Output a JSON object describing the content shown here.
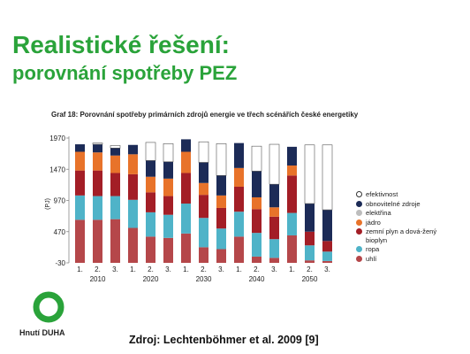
{
  "slide": {
    "title": "Realistické řešení:",
    "subtitle": "porovnání spotřeby PEZ",
    "source": "Zdroj: Lechtenböhmer et al. 2009 [9]",
    "logo_text": "Hnutí DUHA",
    "logo_icon": "green-ring-icon",
    "brand_color": "#2aa33a"
  },
  "chart_data": {
    "type": "bar",
    "stacked": true,
    "title": "Graf 18: Porovnání spotřeby primárních zdrojů energie ve třech scénářích české energetiky",
    "ylabel": "(PJ)",
    "ylim": [
      -30,
      1970
    ],
    "yticks": [
      -30,
      470,
      970,
      1470,
      1970
    ],
    "groups": [
      {
        "year": "2010",
        "scenarios": [
          "1.",
          "2.",
          "3."
        ]
      },
      {
        "year": "2020",
        "scenarios": [
          "1.",
          "2.",
          "3."
        ]
      },
      {
        "year": "2030",
        "scenarios": [
          "1.",
          "2.",
          "3."
        ]
      },
      {
        "year": "2040",
        "scenarios": [
          "1.",
          "2.",
          "3."
        ]
      },
      {
        "year": "2050",
        "scenarios": [
          "1.",
          "2.",
          "3."
        ]
      }
    ],
    "categories": [
      "2010 1.",
      "2010 2.",
      "2010 3.",
      "2020 1.",
      "2020 2.",
      "2020 3.",
      "2030 1.",
      "2030 2.",
      "2030 3.",
      "2040 1.",
      "2040 2.",
      "2040 3.",
      "2050 1.",
      "2050 2.",
      "2050 3."
    ],
    "series": [
      {
        "name": "uhlí",
        "color": "#b5474a",
        "values": [
          690,
          690,
          700,
          560,
          420,
          400,
          470,
          250,
          220,
          420,
          100,
          80,
          440,
          40,
          30
        ]
      },
      {
        "name": "ropa",
        "color": "#4fb3c8",
        "values": [
          390,
          380,
          370,
          450,
          390,
          370,
          480,
          470,
          330,
          400,
          380,
          300,
          360,
          240,
          150
        ]
      },
      {
        "name": "zemní plyn a dováž. bioplyn",
        "color": "#a31e26",
        "values": [
          400,
          410,
          370,
          410,
          320,
          300,
          490,
          370,
          330,
          400,
          380,
          360,
          600,
          220,
          170
        ]
      },
      {
        "name": "elektřina",
        "color": "#bdbdbd",
        "values": [
          0,
          0,
          0,
          0,
          0,
          0,
          0,
          0,
          0,
          0,
          0,
          0,
          0,
          0,
          0
        ]
      },
      {
        "name": "jádro",
        "color": "#e8732a",
        "values": [
          300,
          290,
          280,
          320,
          250,
          280,
          340,
          190,
          200,
          300,
          190,
          150,
          160,
          0,
          0
        ]
      },
      {
        "name": "obnovitelné zdroje",
        "color": "#1c2b57",
        "values": [
          120,
          130,
          120,
          150,
          260,
          270,
          200,
          330,
          320,
          400,
          420,
          370,
          300,
          450,
          500
        ]
      },
      {
        "name": "efektivnost",
        "color": "#ffffff",
        "values": [
          0,
          20,
          40,
          0,
          290,
          290,
          0,
          330,
          510,
          0,
          400,
          640,
          0,
          940,
          1040
        ]
      }
    ],
    "legend_order": [
      "efektivnost",
      "obnovitelné zdroje",
      "elektřina",
      "jádro",
      "zemní plyn a dováž. bioplyn",
      "ropa",
      "uhlí"
    ],
    "legend_labels": [
      "efektivnost",
      "obnovitelné zdroje",
      "elektřina",
      "jádro",
      "zemní plyn a dová-žený bioplyn",
      "ropa",
      "uhlí"
    ],
    "legend_position": "right",
    "grid": false
  }
}
